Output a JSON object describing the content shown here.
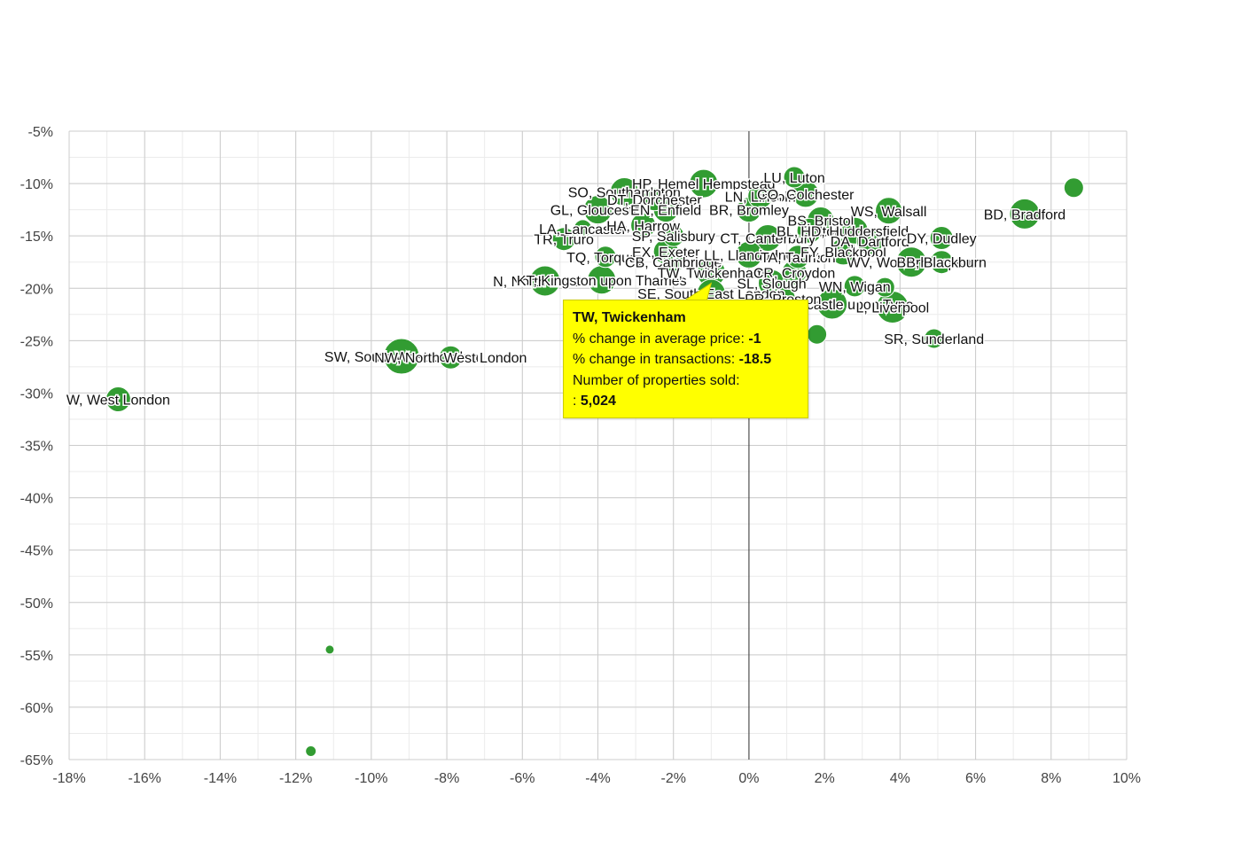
{
  "chart_data": {
    "type": "scatter",
    "title": "",
    "xlabel": "% change in average price",
    "ylabel": "% change in transactions",
    "xlim": [
      -18,
      10
    ],
    "ylim": [
      -65,
      -5
    ],
    "x_ticks": [
      "-18%",
      "-16%",
      "-14%",
      "-12%",
      "-10%",
      "-8%",
      "-6%",
      "-4%",
      "-2%",
      "0%",
      "2%",
      "4%",
      "6%",
      "8%",
      "10%"
    ],
    "y_ticks": [
      "-5%",
      "-10%",
      "-15%",
      "-20%",
      "-25%",
      "-30%",
      "-35%",
      "-40%",
      "-45%",
      "-50%",
      "-55%",
      "-60%",
      "-65%"
    ],
    "grid": true,
    "marker_color": "#2e9a2e",
    "points": [
      {
        "label": "W, West London",
        "x": -16.7,
        "y": -30.6,
        "r": 14
      },
      {
        "label": "SW, South West London",
        "x": -9.2,
        "y": -26.5,
        "r": 20
      },
      {
        "label": "NW, North West London",
        "x": -7.9,
        "y": -26.6,
        "r": 13
      },
      {
        "label": "",
        "x": -11.1,
        "y": -54.5,
        "r": 5
      },
      {
        "label": "",
        "x": -11.6,
        "y": -64.2,
        "r": 6
      },
      {
        "label": "N, North London",
        "x": -5.4,
        "y": -19.3,
        "r": 17
      },
      {
        "label": "KT, Kingston upon Thames",
        "x": -3.9,
        "y": -19.2,
        "r": 16
      },
      {
        "label": "TR, Truro",
        "x": -4.9,
        "y": -15.3,
        "r": 13
      },
      {
        "label": "LA, Lancaster",
        "x": -4.4,
        "y": -14.3,
        "r": 10
      },
      {
        "label": "TQ, Torquay",
        "x": -3.8,
        "y": -17.0,
        "r": 12
      },
      {
        "label": "GL, Gloucester",
        "x": -4.0,
        "y": -12.5,
        "r": 16
      },
      {
        "label": "SO, Southampton",
        "x": -3.3,
        "y": -10.8,
        "r": 16
      },
      {
        "label": "HP, Hemel Hempstead",
        "x": -1.2,
        "y": -10.0,
        "r": 16
      },
      {
        "label": "DT, Dorchester",
        "x": -2.5,
        "y": -11.5,
        "r": 13
      },
      {
        "label": "EN, Enfield",
        "x": -2.2,
        "y": -12.5,
        "r": 14
      },
      {
        "label": "HA, Harrow",
        "x": -2.8,
        "y": -14.0,
        "r": 14
      },
      {
        "label": "SP, Salisbury",
        "x": -2.0,
        "y": -15.0,
        "r": 12
      },
      {
        "label": "EX, Exeter",
        "x": -2.2,
        "y": -16.5,
        "r": 14
      },
      {
        "label": "CB, Cambridge",
        "x": -2.0,
        "y": -17.5,
        "r": 12
      },
      {
        "label": "TW, Twickenham",
        "x": -1.0,
        "y": -18.5,
        "r": 16
      },
      {
        "label": "SE, South East London",
        "x": -1.0,
        "y": -20.5,
        "r": 16
      },
      {
        "label": "BR, Bromley",
        "x": 0.0,
        "y": -12.5,
        "r": 14
      },
      {
        "label": "LN, Lincoln",
        "x": 0.3,
        "y": -11.2,
        "r": 14
      },
      {
        "label": "CO, Colchester",
        "x": 1.5,
        "y": -11.0,
        "r": 15
      },
      {
        "label": "LU, Luton",
        "x": 1.2,
        "y": -9.4,
        "r": 12
      },
      {
        "label": "CT, Canterbury",
        "x": 0.5,
        "y": -15.2,
        "r": 15
      },
      {
        "label": "LL, Llandudno",
        "x": 0.0,
        "y": -16.8,
        "r": 15
      },
      {
        "label": "NE, Newcastle upon Tyne",
        "x": 2.2,
        "y": -21.5,
        "r": 17
      },
      {
        "label": "CR, Croydon",
        "x": 1.2,
        "y": -18.5,
        "r": 14
      },
      {
        "label": "SL, Slough",
        "x": 0.6,
        "y": -19.5,
        "r": 15
      },
      {
        "label": "PR, Preston",
        "x": 0.9,
        "y": -21.0,
        "r": 14
      },
      {
        "label": "BL, Bolton",
        "x": 1.6,
        "y": -14.5,
        "r": 14
      },
      {
        "label": "TA, Taunton",
        "x": 1.3,
        "y": -17.0,
        "r": 13
      },
      {
        "label": "FY, Blackpool",
        "x": 2.5,
        "y": -16.5,
        "r": 15
      },
      {
        "label": "BS, Bristol",
        "x": 1.9,
        "y": -13.5,
        "r": 15
      },
      {
        "label": "HD, Huddersfield",
        "x": 2.8,
        "y": -14.5,
        "r": 15
      },
      {
        "label": "DA, Dartford",
        "x": 3.2,
        "y": -15.5,
        "r": 15
      },
      {
        "label": "WS, Walsall",
        "x": 3.7,
        "y": -12.6,
        "r": 15
      },
      {
        "label": "DY, Dudley",
        "x": 5.1,
        "y": -15.2,
        "r": 13
      },
      {
        "label": "WV, Wolverhampton",
        "x": 4.3,
        "y": -17.5,
        "r": 17
      },
      {
        "label": "BB, Blackburn",
        "x": 5.1,
        "y": -17.5,
        "r": 13
      },
      {
        "label": "WN, Wigan",
        "x": 2.8,
        "y": -19.8,
        "r": 12
      },
      {
        "label": "L, Liverpool",
        "x": 3.8,
        "y": -21.8,
        "r": 18
      },
      {
        "label": "SR, Sunderland",
        "x": 4.9,
        "y": -24.8,
        "r": 11
      },
      {
        "label": "",
        "x": 1.8,
        "y": -24.4,
        "r": 11
      },
      {
        "label": "",
        "x": 3.6,
        "y": -19.9,
        "r": 11
      },
      {
        "label": "BD, Bradford",
        "x": 7.3,
        "y": -12.9,
        "r": 17
      },
      {
        "label": "",
        "x": 8.6,
        "y": -10.4,
        "r": 11
      }
    ],
    "tooltip": {
      "title": "TW, Twickenham",
      "price_change_label": "% change in average price:",
      "price_change_value": "-1",
      "transactions_change_label": "% change in transactions:",
      "transactions_change_value": "-18.5",
      "properties_sold_label": "Number of properties sold:",
      "properties_sold_prefix": ":",
      "properties_sold_value": "5,024"
    }
  }
}
